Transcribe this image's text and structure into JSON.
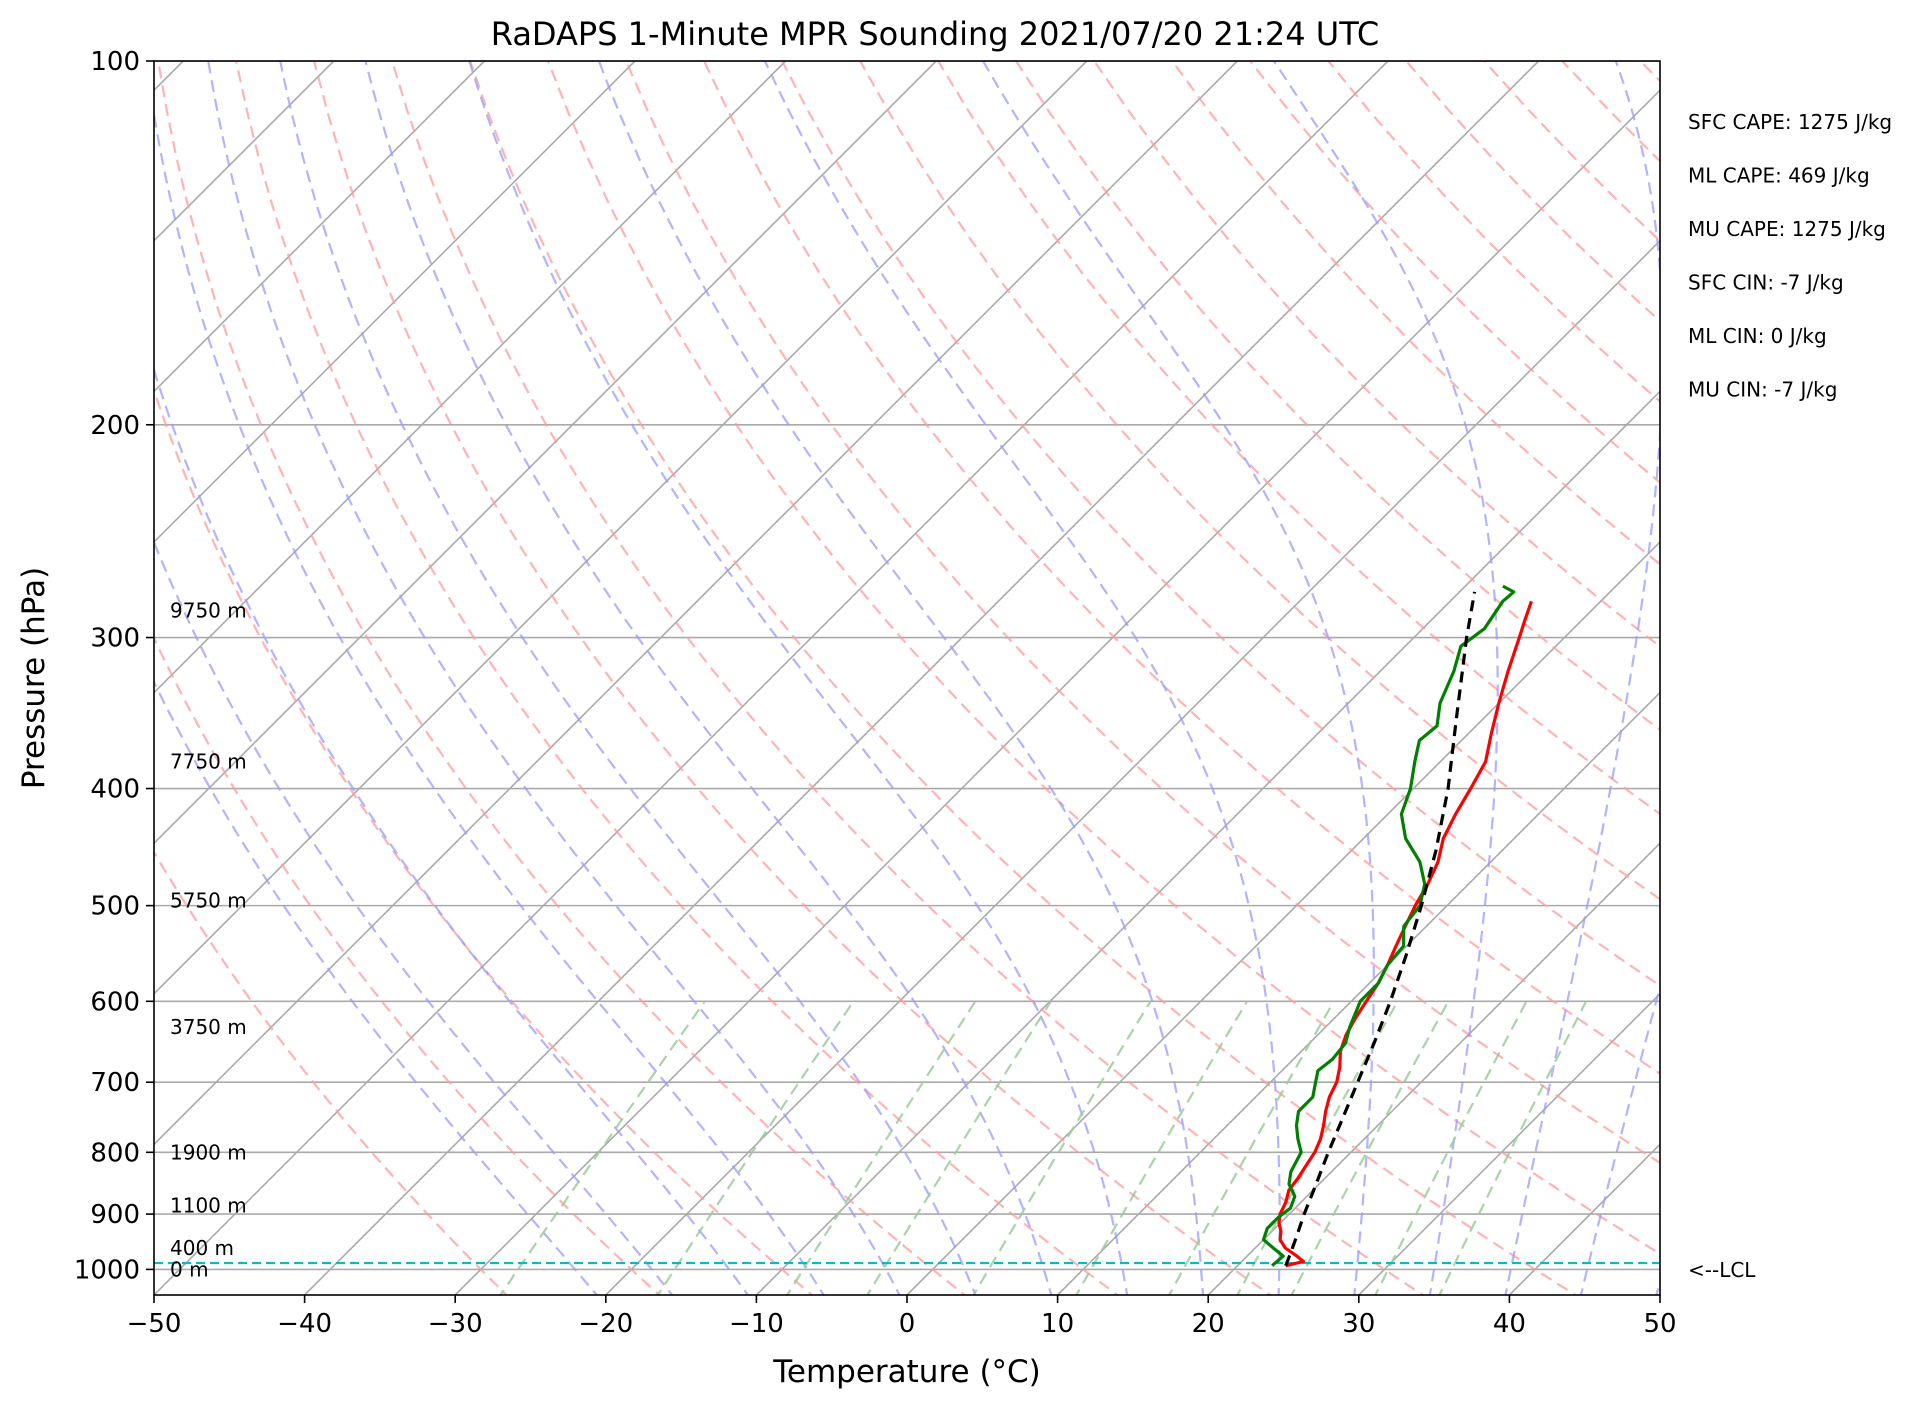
{
  "chart_data": {
    "type": "line",
    "subtype": "skew-T log-p sounding",
    "title": "RaDAPS 1-Minute MPR Sounding 2021/07/20 21:24 UTC",
    "xlabel": "Temperature (°C)",
    "ylabel": "Pressure (hPa)",
    "xlim": [
      -50,
      50
    ],
    "ylim": [
      1050,
      100
    ],
    "y_scale": "log",
    "x_ticks": [
      -50,
      -40,
      -30,
      -20,
      -10,
      0,
      10,
      20,
      30,
      40,
      50
    ],
    "x_tick_labels": [
      "−50",
      "−40",
      "−30",
      "−20",
      "−10",
      "0",
      "10",
      "20",
      "30",
      "40",
      "50"
    ],
    "y_ticks": [
      1000,
      900,
      800,
      700,
      600,
      500,
      400,
      300,
      200,
      100
    ],
    "y_tick_labels": [
      "1000",
      "900",
      "800",
      "700",
      "600",
      "500",
      "400",
      "300",
      "200",
      "100"
    ],
    "grid": true,
    "series": [
      {
        "role": "temperature",
        "color": "#ff0000",
        "points": [
          [
            993,
            23.2
          ],
          [
            985,
            24.1
          ],
          [
            975,
            23.3
          ],
          [
            960,
            22.0
          ],
          [
            945,
            21.1
          ],
          [
            930,
            20.6
          ],
          [
            915,
            19.9
          ],
          [
            900,
            19.4
          ],
          [
            880,
            19.0
          ],
          [
            860,
            18.4
          ],
          [
            840,
            18.2
          ],
          [
            820,
            17.9
          ],
          [
            800,
            17.6
          ],
          [
            780,
            17.1
          ],
          [
            760,
            16.4
          ],
          [
            740,
            15.6
          ],
          [
            720,
            14.9
          ],
          [
            700,
            14.4
          ],
          [
            680,
            13.6
          ],
          [
            660,
            12.6
          ],
          [
            640,
            11.9
          ],
          [
            620,
            11.4
          ],
          [
            600,
            11.0
          ],
          [
            580,
            10.6
          ],
          [
            560,
            10.0
          ],
          [
            540,
            9.3
          ],
          [
            520,
            8.6
          ],
          [
            500,
            7.9
          ],
          [
            480,
            7.3
          ],
          [
            460,
            6.5
          ],
          [
            440,
            5.3
          ],
          [
            420,
            4.5
          ],
          [
            400,
            3.8
          ],
          [
            380,
            3.0
          ],
          [
            360,
            1.5
          ],
          [
            340,
            0.0
          ],
          [
            320,
            -1.5
          ],
          [
            300,
            -3.0
          ],
          [
            290,
            -3.8
          ],
          [
            280,
            -4.6
          ]
        ]
      },
      {
        "role": "dewpoint",
        "color": "#008000",
        "points": [
          [
            993,
            22.3
          ],
          [
            975,
            22.4
          ],
          [
            960,
            21.2
          ],
          [
            945,
            20.0
          ],
          [
            925,
            19.5
          ],
          [
            905,
            19.5
          ],
          [
            890,
            19.7
          ],
          [
            870,
            19.2
          ],
          [
            850,
            18.0
          ],
          [
            830,
            17.3
          ],
          [
            800,
            16.7
          ],
          [
            780,
            15.6
          ],
          [
            760,
            14.6
          ],
          [
            740,
            13.8
          ],
          [
            720,
            13.8
          ],
          [
            700,
            13.0
          ],
          [
            685,
            12.4
          ],
          [
            670,
            12.6
          ],
          [
            650,
            12.4
          ],
          [
            630,
            11.6
          ],
          [
            600,
            10.6
          ],
          [
            580,
            10.6
          ],
          [
            560,
            10.0
          ],
          [
            540,
            9.8
          ],
          [
            520,
            8.5
          ],
          [
            500,
            8.2
          ],
          [
            480,
            7.1
          ],
          [
            460,
            5.3
          ],
          [
            440,
            2.8
          ],
          [
            420,
            0.9
          ],
          [
            400,
            -0.2
          ],
          [
            380,
            -1.7
          ],
          [
            365,
            -2.8
          ],
          [
            355,
            -2.6
          ],
          [
            340,
            -3.9
          ],
          [
            320,
            -5.1
          ],
          [
            305,
            -6.3
          ],
          [
            295,
            -5.9
          ],
          [
            280,
            -6.5
          ],
          [
            275,
            -6.4
          ],
          [
            272,
            -7.5
          ]
        ]
      },
      {
        "role": "parcel-profile",
        "color": "#000000",
        "style": "dashed",
        "points": [
          [
            993,
            23.2
          ],
          [
            970,
            22.7
          ],
          [
            940,
            22.0
          ],
          [
            900,
            21.0
          ],
          [
            850,
            19.8
          ],
          [
            800,
            18.5
          ],
          [
            750,
            17.2
          ],
          [
            700,
            15.8
          ],
          [
            650,
            14.3
          ],
          [
            600,
            12.6
          ],
          [
            550,
            10.6
          ],
          [
            500,
            8.3
          ],
          [
            450,
            5.6
          ],
          [
            400,
            2.3
          ],
          [
            350,
            -1.8
          ],
          [
            300,
            -6.5
          ],
          [
            275,
            -9.0
          ]
        ]
      }
    ],
    "lcl_pressure": 988,
    "lcl_label": "<--LCL",
    "height_labels": [
      {
        "text": "0 m",
        "pressure": 1000
      },
      {
        "text": "400 m",
        "pressure": 960
      },
      {
        "text": "1100 m",
        "pressure": 885
      },
      {
        "text": "1900 m",
        "pressure": 800
      },
      {
        "text": "3750 m",
        "pressure": 630
      },
      {
        "text": "5750 m",
        "pressure": 495
      },
      {
        "text": "7750 m",
        "pressure": 380
      },
      {
        "text": "9750 m",
        "pressure": 285
      }
    ],
    "indices": [
      "SFC CAPE: 1275 J/kg",
      "ML CAPE: 469 J/kg",
      "MU CAPE: 1275 J/kg",
      "SFC CIN: -7 J/kg",
      "ML CIN: 0 J/kg",
      "MU CIN: -7 J/kg"
    ],
    "colors": {
      "isotherm": "#aaaaaa",
      "isobar": "#aaaaaa",
      "dry_adiabat": "#ff9999",
      "moist_adiabat": "#9999ff",
      "mixing_ratio": "#99cc99",
      "lcl_line": "#00bfbf"
    }
  }
}
